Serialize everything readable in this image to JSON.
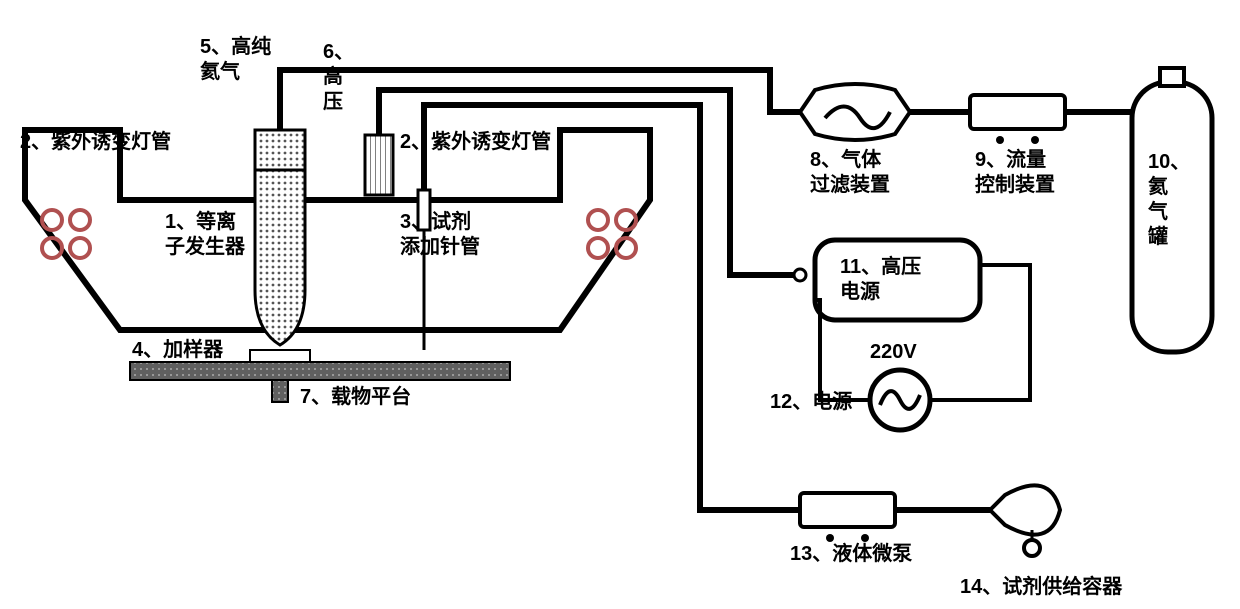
{
  "labels": {
    "n1": "1、等离\n子发生器",
    "n2a": "2、紫外诱变灯管",
    "n2b": "2、紫外诱变灯管",
    "n3": "3、试剂\n添加针管",
    "n4": "4、加样器",
    "n5": "5、高纯\n氦气",
    "n6": "6、\n高\n压",
    "n7": "7、载物平台",
    "n8": "8、气体\n过滤装置",
    "n9": "9、流量\n控制装置",
    "n10": "10、\n氦\n气\n罐",
    "n11": "11、高压\n电源",
    "n12": "12、电源",
    "n12v": "220V",
    "n13": "13、液体微泵",
    "n14": "14、试剂供给容器"
  },
  "style": {
    "stroke": "#000000",
    "thick": 6,
    "med": 3,
    "coil": "#b05050",
    "dot": "#555555"
  }
}
